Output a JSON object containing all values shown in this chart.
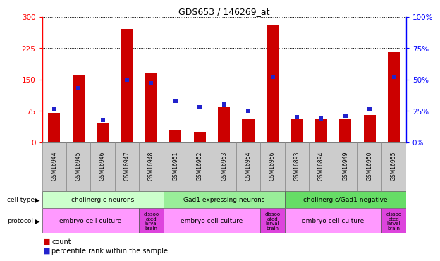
{
  "title": "GDS653 / 146269_at",
  "samples": [
    "GSM16944",
    "GSM16945",
    "GSM16946",
    "GSM16947",
    "GSM16948",
    "GSM16951",
    "GSM16952",
    "GSM16953",
    "GSM16954",
    "GSM16956",
    "GSM16893",
    "GSM16894",
    "GSM16949",
    "GSM16950",
    "GSM16955"
  ],
  "counts": [
    70,
    160,
    45,
    270,
    165,
    30,
    25,
    85,
    55,
    280,
    55,
    55,
    55,
    65,
    215
  ],
  "percentiles": [
    27,
    43,
    18,
    50,
    47,
    33,
    28,
    30,
    25,
    52,
    20,
    19,
    21,
    27,
    52
  ],
  "ylim_left": [
    0,
    300
  ],
  "ylim_right": [
    0,
    100
  ],
  "yticks_left": [
    0,
    75,
    150,
    225,
    300
  ],
  "yticks_right": [
    0,
    25,
    50,
    75,
    100
  ],
  "bar_color": "#cc0000",
  "dot_color": "#2222cc",
  "cell_types": [
    {
      "label": "cholinergic neurons",
      "start": 0,
      "end": 5,
      "color": "#ccffcc"
    },
    {
      "label": "Gad1 expressing neurons",
      "start": 5,
      "end": 10,
      "color": "#99ee99"
    },
    {
      "label": "cholinergic/Gad1 negative",
      "start": 10,
      "end": 15,
      "color": "#66dd66"
    }
  ],
  "protocols": [
    {
      "label": "embryo cell culture",
      "start": 0,
      "end": 4,
      "color": "#ff99ff"
    },
    {
      "label": "dissoo\nated\nlarval\nbrain",
      "start": 4,
      "end": 5,
      "color": "#dd44dd"
    },
    {
      "label": "embryo cell culture",
      "start": 5,
      "end": 9,
      "color": "#ff99ff"
    },
    {
      "label": "dissoo\nated\nlarval\nbrain",
      "start": 9,
      "end": 10,
      "color": "#dd44dd"
    },
    {
      "label": "embryo cell culture",
      "start": 10,
      "end": 14,
      "color": "#ff99ff"
    },
    {
      "label": "dissoo\nated\nlarval\nbrain",
      "start": 14,
      "end": 15,
      "color": "#dd44dd"
    }
  ],
  "bg_color": "#ffffff"
}
